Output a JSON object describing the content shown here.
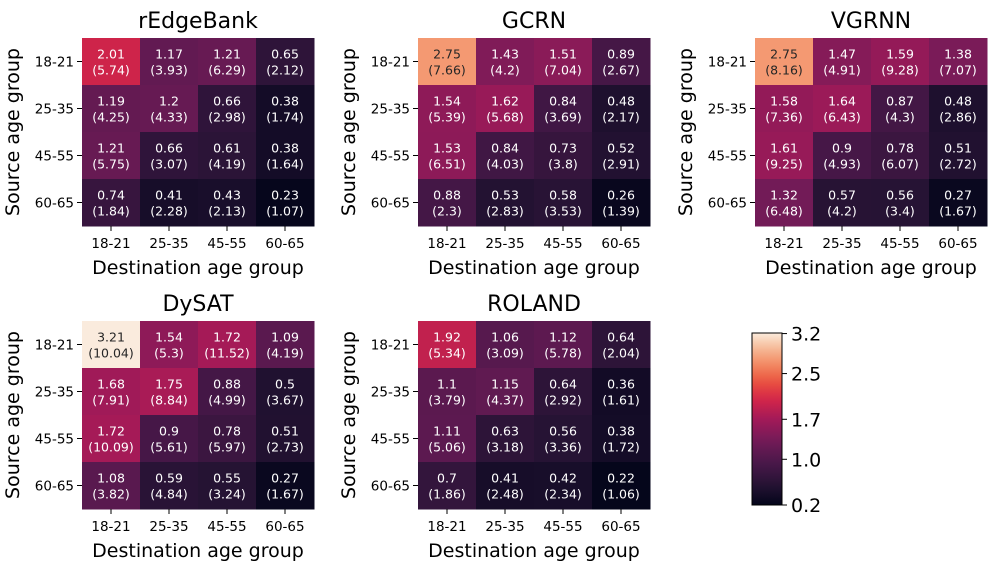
{
  "chart_data": {
    "type": "heatmap",
    "color_scale": {
      "min": 0.2,
      "max": 3.21,
      "ticks": [
        3.2,
        2.5,
        1.7,
        1.0,
        0.2
      ],
      "tick_labels": [
        "3.2",
        "2.5",
        "1.7",
        "1.0",
        "0.2"
      ],
      "colormap": "rocket"
    },
    "groups": [
      "18-21",
      "25-35",
      "45-55",
      "60-65"
    ],
    "xlabel": "Destination age group",
    "ylabel": "Source age group",
    "panels": [
      {
        "title": "rEdgeBank",
        "values": [
          [
            2.01,
            1.17,
            1.21,
            0.65
          ],
          [
            1.19,
            1.2,
            0.66,
            0.38
          ],
          [
            1.21,
            0.66,
            0.61,
            0.38
          ],
          [
            0.74,
            0.41,
            0.43,
            0.23
          ]
        ],
        "labels": [
          [
            [
              "2.01",
              "(5.74)"
            ],
            [
              "1.17",
              "(3.93)"
            ],
            [
              "1.21",
              "(6.29)"
            ],
            [
              "0.65",
              "(2.12)"
            ]
          ],
          [
            [
              "1.19",
              "(4.25)"
            ],
            [
              "1.2",
              "(4.33)"
            ],
            [
              "0.66",
              "(2.98)"
            ],
            [
              "0.38",
              "(1.74)"
            ]
          ],
          [
            [
              "1.21",
              "(5.75)"
            ],
            [
              "0.66",
              "(3.07)"
            ],
            [
              "0.61",
              "(4.19)"
            ],
            [
              "0.38",
              "(1.64)"
            ]
          ],
          [
            [
              "0.74",
              "(1.84)"
            ],
            [
              "0.41",
              "(2.28)"
            ],
            [
              "0.43",
              "(2.13)"
            ],
            [
              "0.23",
              "(1.07)"
            ]
          ]
        ]
      },
      {
        "title": "GCRN",
        "values": [
          [
            2.75,
            1.43,
            1.51,
            0.89
          ],
          [
            1.54,
            1.62,
            0.84,
            0.48
          ],
          [
            1.53,
            0.84,
            0.73,
            0.52
          ],
          [
            0.88,
            0.53,
            0.58,
            0.26
          ]
        ],
        "labels": [
          [
            [
              "2.75",
              "(7.66)"
            ],
            [
              "1.43",
              "(4.2)"
            ],
            [
              "1.51",
              "(7.04)"
            ],
            [
              "0.89",
              "(2.67)"
            ]
          ],
          [
            [
              "1.54",
              "(5.39)"
            ],
            [
              "1.62",
              "(5.68)"
            ],
            [
              "0.84",
              "(3.69)"
            ],
            [
              "0.48",
              "(2.17)"
            ]
          ],
          [
            [
              "1.53",
              "(6.51)"
            ],
            [
              "0.84",
              "(4.03)"
            ],
            [
              "0.73",
              "(3.8)"
            ],
            [
              "0.52",
              "(2.91)"
            ]
          ],
          [
            [
              "0.88",
              "(2.3)"
            ],
            [
              "0.53",
              "(2.83)"
            ],
            [
              "0.58",
              "(3.53)"
            ],
            [
              "0.26",
              "(1.39)"
            ]
          ]
        ]
      },
      {
        "title": "VGRNN",
        "values": [
          [
            2.75,
            1.47,
            1.59,
            1.38
          ],
          [
            1.58,
            1.64,
            0.87,
            0.48
          ],
          [
            1.61,
            0.9,
            0.78,
            0.51
          ],
          [
            1.32,
            0.57,
            0.56,
            0.27
          ]
        ],
        "labels": [
          [
            [
              "2.75",
              "(8.16)"
            ],
            [
              "1.47",
              "(4.91)"
            ],
            [
              "1.59",
              "(9.28)"
            ],
            [
              "1.38",
              "(7.07)"
            ]
          ],
          [
            [
              "1.58",
              "(7.36)"
            ],
            [
              "1.64",
              "(6.43)"
            ],
            [
              "0.87",
              "(4.3)"
            ],
            [
              "0.48",
              "(2.86)"
            ]
          ],
          [
            [
              "1.61",
              "(9.25)"
            ],
            [
              "0.9",
              "(4.93)"
            ],
            [
              "0.78",
              "(6.07)"
            ],
            [
              "0.51",
              "(2.72)"
            ]
          ],
          [
            [
              "1.32",
              "(6.48)"
            ],
            [
              "0.57",
              "(4.2)"
            ],
            [
              "0.56",
              "(3.4)"
            ],
            [
              "0.27",
              "(1.67)"
            ]
          ]
        ]
      },
      {
        "title": "DySAT",
        "values": [
          [
            3.21,
            1.54,
            1.72,
            1.09
          ],
          [
            1.68,
            1.75,
            0.88,
            0.5
          ],
          [
            1.72,
            0.9,
            0.78,
            0.51
          ],
          [
            1.08,
            0.59,
            0.55,
            0.27
          ]
        ],
        "labels": [
          [
            [
              "3.21",
              "(10.04)"
            ],
            [
              "1.54",
              "(5.3)"
            ],
            [
              "1.72",
              "(11.52)"
            ],
            [
              "1.09",
              "(4.19)"
            ]
          ],
          [
            [
              "1.68",
              "(7.91)"
            ],
            [
              "1.75",
              "(8.84)"
            ],
            [
              "0.88",
              "(4.99)"
            ],
            [
              "0.5",
              "(3.67)"
            ]
          ],
          [
            [
              "1.72",
              "(10.09)"
            ],
            [
              "0.9",
              "(5.61)"
            ],
            [
              "0.78",
              "(5.97)"
            ],
            [
              "0.51",
              "(2.73)"
            ]
          ],
          [
            [
              "1.08",
              "(3.82)"
            ],
            [
              "0.59",
              "(4.84)"
            ],
            [
              "0.55",
              "(3.24)"
            ],
            [
              "0.27",
              "(1.67)"
            ]
          ]
        ]
      },
      {
        "title": "ROLAND",
        "values": [
          [
            1.92,
            1.06,
            1.12,
            0.64
          ],
          [
            1.1,
            1.15,
            0.64,
            0.36
          ],
          [
            1.11,
            0.63,
            0.56,
            0.38
          ],
          [
            0.7,
            0.41,
            0.42,
            0.22
          ]
        ],
        "labels": [
          [
            [
              "1.92",
              "(5.34)"
            ],
            [
              "1.06",
              "(3.09)"
            ],
            [
              "1.12",
              "(5.78)"
            ],
            [
              "0.64",
              "(2.04)"
            ]
          ],
          [
            [
              "1.1",
              "(3.79)"
            ],
            [
              "1.15",
              "(4.37)"
            ],
            [
              "0.64",
              "(2.92)"
            ],
            [
              "0.36",
              "(1.61)"
            ]
          ],
          [
            [
              "1.11",
              "(5.06)"
            ],
            [
              "0.63",
              "(3.18)"
            ],
            [
              "0.56",
              "(3.36)"
            ],
            [
              "0.38",
              "(1.72)"
            ]
          ],
          [
            [
              "0.7",
              "(1.86)"
            ],
            [
              "0.41",
              "(2.48)"
            ],
            [
              "0.42",
              "(2.34)"
            ],
            [
              "0.22",
              "(1.06)"
            ]
          ]
        ]
      }
    ]
  }
}
